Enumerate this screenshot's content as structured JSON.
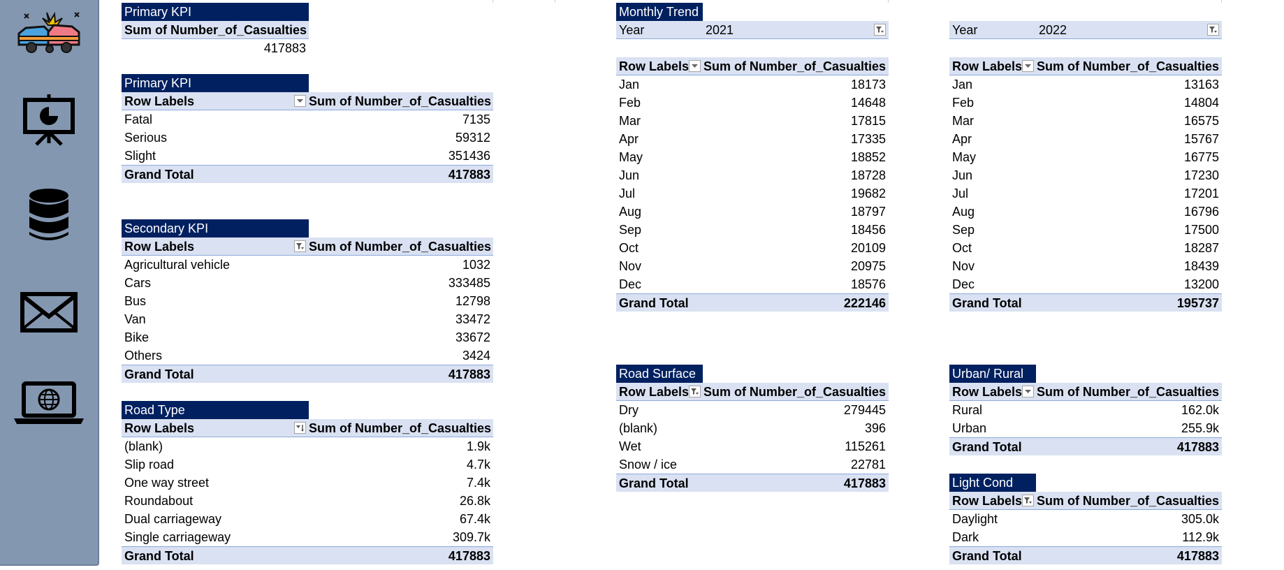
{
  "sidebar": {
    "icons": [
      "car-crash-icon",
      "presentation-chart-icon",
      "database-icon",
      "envelope-icon",
      "laptop-globe-icon"
    ]
  },
  "kpi_total": {
    "title": "Primary KPI",
    "header": "Sum of Number_of_Casualties",
    "value": "417883"
  },
  "kpi_severity": {
    "title": "Primary KPI",
    "col1": "Row Labels",
    "col2": "Sum of Number_of_Casualties",
    "rows": [
      {
        "label": "Fatal",
        "value": "7135"
      },
      {
        "label": "Serious",
        "value": "59312"
      },
      {
        "label": "Slight",
        "value": "351436"
      }
    ],
    "total_label": "Grand Total",
    "total_value": "417883"
  },
  "secondary_kpi": {
    "title": "Secondary KPI",
    "col1": "Row Labels",
    "col2": "Sum of Number_of_Casualties",
    "rows": [
      {
        "label": "Agricultural vehicle",
        "value": "1032"
      },
      {
        "label": "Cars",
        "value": "333485"
      },
      {
        "label": "Bus",
        "value": "12798"
      },
      {
        "label": "Van",
        "value": "33472"
      },
      {
        "label": "Bike",
        "value": "33672"
      },
      {
        "label": "Others",
        "value": "3424"
      }
    ],
    "total_label": "Grand Total",
    "total_value": "417883"
  },
  "road_type": {
    "title": "Road Type",
    "col1": "Row Labels",
    "col2": "Sum of Number_of_Casualties",
    "rows": [
      {
        "label": "(blank)",
        "value": "1.9k"
      },
      {
        "label": "Slip road",
        "value": "4.7k"
      },
      {
        "label": "One way street",
        "value": "7.4k"
      },
      {
        "label": "Roundabout",
        "value": "26.8k"
      },
      {
        "label": "Dual carriageway",
        "value": "67.4k"
      },
      {
        "label": "Single carriageway",
        "value": "309.7k"
      }
    ],
    "total_label": "Grand Total",
    "total_value": "417883"
  },
  "trend_2021": {
    "title": "Monthly Trend",
    "filter_label": "Year",
    "filter_value": "2021",
    "col1": "Row Labels",
    "col2": "Sum of Number_of_Casualties",
    "rows": [
      {
        "label": "Jan",
        "value": "18173"
      },
      {
        "label": "Feb",
        "value": "14648"
      },
      {
        "label": "Mar",
        "value": "17815"
      },
      {
        "label": "Apr",
        "value": "17335"
      },
      {
        "label": "May",
        "value": "18852"
      },
      {
        "label": "Jun",
        "value": "18728"
      },
      {
        "label": "Jul",
        "value": "19682"
      },
      {
        "label": "Aug",
        "value": "18797"
      },
      {
        "label": "Sep",
        "value": "18456"
      },
      {
        "label": "Oct",
        "value": "20109"
      },
      {
        "label": "Nov",
        "value": "20975"
      },
      {
        "label": "Dec",
        "value": "18576"
      }
    ],
    "total_label": "Grand Total",
    "total_value": "222146"
  },
  "trend_2022": {
    "filter_label": "Year",
    "filter_value": "2022",
    "col1": "Row Labels",
    "col2": "Sum of Number_of_Casualties",
    "rows": [
      {
        "label": "Jan",
        "value": "13163"
      },
      {
        "label": "Feb",
        "value": "14804"
      },
      {
        "label": "Mar",
        "value": "16575"
      },
      {
        "label": "Apr",
        "value": "15767"
      },
      {
        "label": "May",
        "value": "16775"
      },
      {
        "label": "Jun",
        "value": "17230"
      },
      {
        "label": "Jul",
        "value": "17201"
      },
      {
        "label": "Aug",
        "value": "16796"
      },
      {
        "label": "Sep",
        "value": "17500"
      },
      {
        "label": "Oct",
        "value": "18287"
      },
      {
        "label": "Nov",
        "value": "18439"
      },
      {
        "label": "Dec",
        "value": "13200"
      }
    ],
    "total_label": "Grand Total",
    "total_value": "195737"
  },
  "road_surface": {
    "title": "Road Surface",
    "col1": "Row Labels",
    "col2": "Sum of Number_of_Casualties",
    "rows": [
      {
        "label": "Dry",
        "value": "279445"
      },
      {
        "label": "(blank)",
        "value": "396"
      },
      {
        "label": "Wet",
        "value": "115261"
      },
      {
        "label": "Snow / ice",
        "value": "22781"
      }
    ],
    "total_label": "Grand Total",
    "total_value": "417883"
  },
  "urban_rural": {
    "title": "Urban/ Rural",
    "col1": "Row Labels",
    "col2": "Sum of Number_of_Casualties",
    "rows": [
      {
        "label": "Rural",
        "value": "162.0k"
      },
      {
        "label": "Urban",
        "value": "255.9k"
      }
    ],
    "total_label": "Grand Total",
    "total_value": "417883"
  },
  "light_cond": {
    "title": "Light Cond",
    "col1": "Row Labels",
    "col2": "Sum of Number_of_Casualties",
    "rows": [
      {
        "label": "Daylight",
        "value": "305.0k"
      },
      {
        "label": "Dark",
        "value": "112.9k"
      }
    ],
    "total_label": "Grand Total",
    "total_value": "417883"
  },
  "colors": {
    "sidebar": "#8497b0",
    "title_fill": "#002060",
    "header_fill": "#d9e1f2",
    "header_border": "#8ea9db"
  }
}
